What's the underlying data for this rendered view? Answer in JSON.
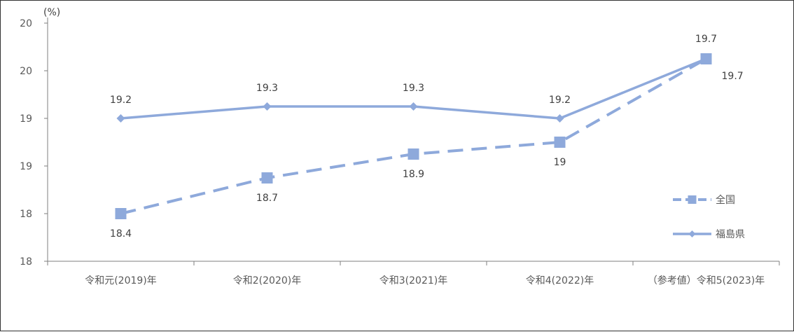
{
  "chart_data": {
    "type": "line",
    "unit_label": "(%)",
    "categories": [
      "令和元(2019)年",
      "令和2(2020)年",
      "令和3(2021)年",
      "令和4(2022)年",
      "（参考値）令和5(2023)年"
    ],
    "y_tick_labels": [
      "18",
      "18",
      "19",
      "19",
      "20",
      "20"
    ],
    "ylim": [
      18.0,
      20.0
    ],
    "grid": false,
    "legend_position": "right",
    "series": [
      {
        "name": "全国",
        "values": [
          18.4,
          18.7,
          18.9,
          19.0,
          19.7
        ],
        "labels": [
          "18.4",
          "18.7",
          "18.9",
          "19",
          "19.7"
        ],
        "color": "#8EA9DB",
        "dash": true,
        "marker": "square"
      },
      {
        "name": "福島県",
        "values": [
          19.2,
          19.3,
          19.3,
          19.2,
          19.7
        ],
        "labels": [
          "19.2",
          "19.3",
          "19.3",
          "19.2",
          "19.7"
        ],
        "color": "#8EA9DB",
        "dash": false,
        "marker": "diamond"
      }
    ]
  }
}
